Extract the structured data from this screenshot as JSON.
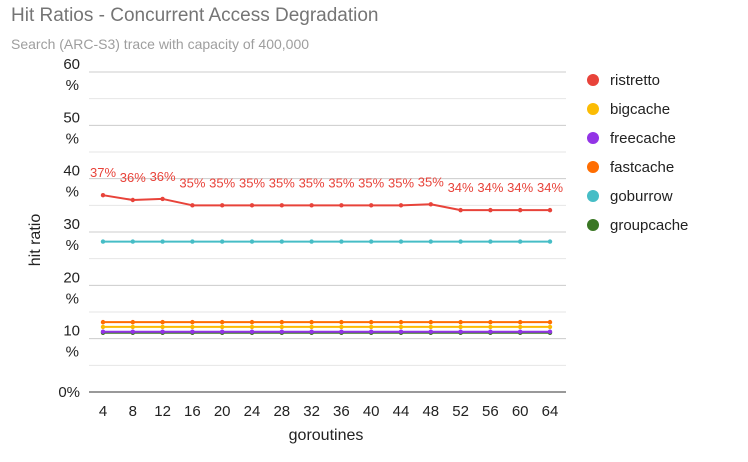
{
  "chart_data": {
    "type": "line",
    "title": "Hit Ratios - Concurrent Access Degradation",
    "subtitle": "Search (ARC-S3) trace with capacity of 400,000",
    "xlabel": "goroutines",
    "ylabel": "hit ratio",
    "x": [
      4,
      8,
      12,
      16,
      20,
      24,
      28,
      32,
      36,
      40,
      44,
      48,
      52,
      56,
      60,
      64
    ],
    "y_ticks": [
      {
        "value": 0,
        "lines": [
          "0%"
        ]
      },
      {
        "value": 10,
        "lines": [
          "10",
          "%"
        ]
      },
      {
        "value": 20,
        "lines": [
          "20",
          "%"
        ]
      },
      {
        "value": 30,
        "lines": [
          "30",
          "%"
        ]
      },
      {
        "value": 40,
        "lines": [
          "40",
          "%"
        ]
      },
      {
        "value": 50,
        "lines": [
          "50",
          "%"
        ]
      },
      {
        "value": 60,
        "lines": [
          "60",
          "%"
        ]
      }
    ],
    "ylim": [
      0,
      60
    ],
    "grid": true,
    "legend_position": "right",
    "series": [
      {
        "name": "ristretto",
        "color": "#e8433a",
        "values": [
          36.9,
          36.0,
          36.2,
          35.0,
          35.0,
          35.0,
          35.0,
          35.0,
          35.0,
          35.0,
          35.0,
          35.2,
          34.1,
          34.1,
          34.1,
          34.1
        ],
        "labels": [
          "37%",
          "36%",
          "36%",
          "35%",
          "35%",
          "35%",
          "35%",
          "35%",
          "35%",
          "35%",
          "35%",
          "35%",
          "34%",
          "34%",
          "34%",
          "34%"
        ]
      },
      {
        "name": "bigcache",
        "color": "#fbbc04",
        "values": [
          12.2,
          12.2,
          12.2,
          12.2,
          12.2,
          12.2,
          12.2,
          12.2,
          12.2,
          12.2,
          12.2,
          12.2,
          12.2,
          12.2,
          12.2,
          12.2
        ]
      },
      {
        "name": "freecache",
        "color": "#9334e6",
        "values": [
          11.3,
          11.3,
          11.3,
          11.3,
          11.3,
          11.3,
          11.3,
          11.3,
          11.3,
          11.3,
          11.3,
          11.3,
          11.3,
          11.3,
          11.3,
          11.3
        ]
      },
      {
        "name": "fastcache",
        "color": "#ff6d01",
        "values": [
          13.1,
          13.1,
          13.1,
          13.1,
          13.1,
          13.1,
          13.1,
          13.1,
          13.1,
          13.1,
          13.1,
          13.1,
          13.1,
          13.1,
          13.1,
          13.1
        ]
      },
      {
        "name": "goburrow",
        "color": "#46bdc6",
        "values": [
          28.2,
          28.2,
          28.2,
          28.2,
          28.2,
          28.2,
          28.2,
          28.2,
          28.2,
          28.2,
          28.2,
          28.2,
          28.2,
          28.2,
          28.2,
          28.2
        ]
      },
      {
        "name": "groupcache",
        "color": "#3a7724",
        "values": [
          11.1,
          11.1,
          11.1,
          11.1,
          11.1,
          11.1,
          11.1,
          11.1,
          11.1,
          11.1,
          11.1,
          11.1,
          11.1,
          11.1,
          11.1,
          11.1
        ]
      }
    ]
  }
}
